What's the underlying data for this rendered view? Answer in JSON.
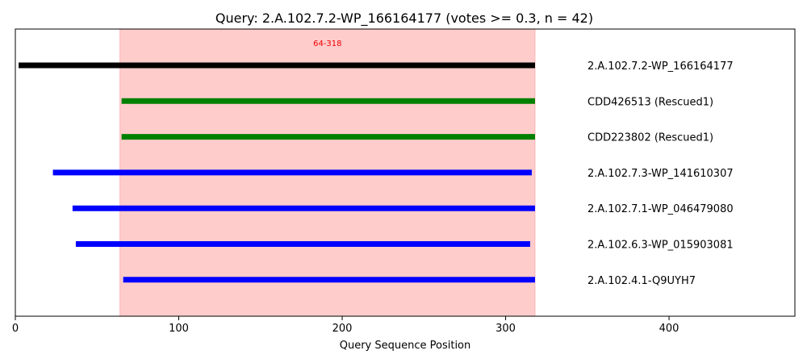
{
  "chart_data": {
    "type": "segment",
    "title": "Query: 2.A.102.7.2-WP_166164177 (votes >= 0.3, n = 42)",
    "xlabel": "Query Sequence Position",
    "ylabel": "",
    "xlim": [
      0,
      477
    ],
    "xticks": [
      0,
      100,
      200,
      300,
      400
    ],
    "grid": false,
    "highlight": {
      "start": 64,
      "end": 318,
      "label": "64-318",
      "color": "#ff9999"
    },
    "series": [
      {
        "label": "2.A.102.7.2-WP_166164177",
        "start": 2,
        "end": 318,
        "color": "#000000"
      },
      {
        "label": "CDD426513 (Rescued1)",
        "start": 65,
        "end": 318,
        "color": "#008000"
      },
      {
        "label": "CDD223802 (Rescued1)",
        "start": 65,
        "end": 318,
        "color": "#008000"
      },
      {
        "label": "2.A.102.7.3-WP_141610307",
        "start": 23,
        "end": 316,
        "color": "#0000ff"
      },
      {
        "label": "2.A.102.7.1-WP_046479080",
        "start": 35,
        "end": 318,
        "color": "#0000ff"
      },
      {
        "label": "2.A.102.6.3-WP_015903081",
        "start": 37,
        "end": 315,
        "color": "#0000ff"
      },
      {
        "label": "2.A.102.4.1-Q9UYH7",
        "start": 66,
        "end": 318,
        "color": "#0000ff"
      }
    ]
  }
}
